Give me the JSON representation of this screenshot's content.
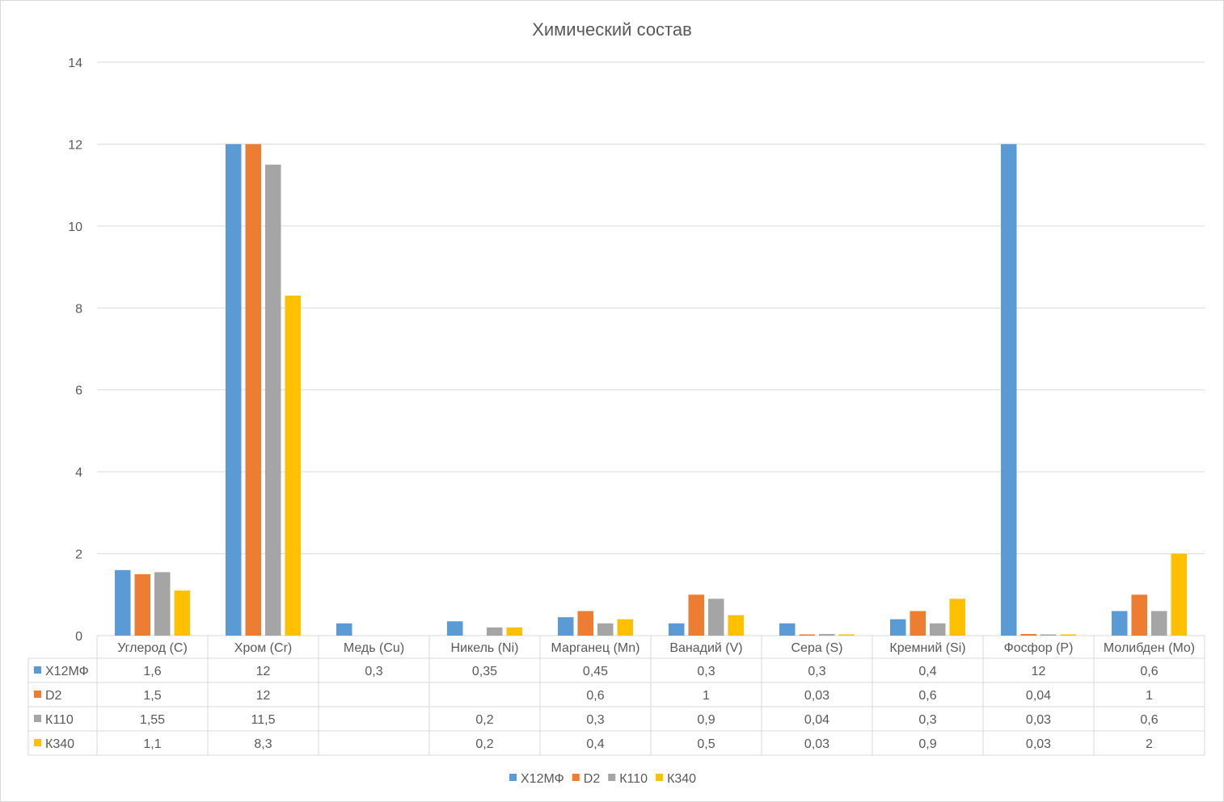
{
  "chart_data": {
    "type": "bar",
    "title": "Химический состав",
    "xlabel": "",
    "ylabel": "",
    "ylim": [
      0,
      14
    ],
    "yticks": [
      0,
      2,
      4,
      6,
      8,
      10,
      12,
      14
    ],
    "grid": true,
    "legend_position": "bottom",
    "data_table": true,
    "categories": [
      "Углерод (C)",
      "Хром (Cr)",
      "Медь (Cu)",
      "Никель (Ni)",
      "Марганец (Mn)",
      "Ванадий (V)",
      "Сера (S)",
      "Кремний (Si)",
      "Фосфор (P)",
      "Молибден (Mo)"
    ],
    "series": [
      {
        "name": "Х12МФ",
        "color": "#5B9BD5",
        "values": [
          1.6,
          12,
          0.3,
          0.35,
          0.45,
          0.3,
          0.3,
          0.4,
          12,
          0.6
        ]
      },
      {
        "name": "D2",
        "color": "#ED7D31",
        "values": [
          1.5,
          12,
          null,
          null,
          0.6,
          1,
          0.03,
          0.6,
          0.04,
          1
        ]
      },
      {
        "name": "К110",
        "color": "#A5A5A5",
        "values": [
          1.55,
          11.5,
          null,
          0.2,
          0.3,
          0.9,
          0.04,
          0.3,
          0.03,
          0.6
        ]
      },
      {
        "name": "К340",
        "color": "#FFC000",
        "values": [
          1.1,
          8.3,
          null,
          0.2,
          0.4,
          0.5,
          0.03,
          0.9,
          0.03,
          2
        ]
      }
    ]
  }
}
